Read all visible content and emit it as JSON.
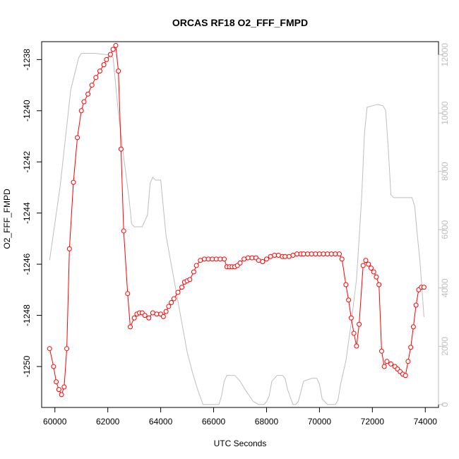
{
  "chart_data": {
    "type": "line",
    "title": "ORCAS RF18 O2_FFF_FMPD",
    "xlabel": "UTC Seconds",
    "ylabel": "O2_FFF_FMPD",
    "xlim": [
      59500,
      74500
    ],
    "ylim": [
      -1251.6,
      -1237.3
    ],
    "y2lim": [
      -100,
      12450
    ],
    "x_ticks": [
      60000,
      62000,
      64000,
      66000,
      68000,
      70000,
      72000,
      74000
    ],
    "y_ticks": [
      -1250,
      -1248,
      -1246,
      -1244,
      -1242,
      -1240,
      -1238
    ],
    "y2_ticks": [
      0,
      2000,
      4000,
      6000,
      8000,
      10000,
      12000
    ],
    "colors": {
      "primary": "#ff0000",
      "secondary": "#bebebe",
      "axis": "#000000"
    },
    "series": [
      {
        "axis": "left",
        "style": "points-lines",
        "x": [
          59800,
          59950,
          60050,
          60150,
          60250,
          60350,
          60450,
          60550,
          60700,
          60850,
          61000,
          61100,
          61250,
          61400,
          61550,
          61700,
          61850,
          61950,
          62100,
          62200,
          62300,
          62400,
          62500,
          62600,
          62750,
          62850,
          63000,
          63100,
          63200,
          63300,
          63400,
          63550,
          63700,
          63850,
          64000,
          64100,
          64200,
          64300,
          64400,
          64500,
          64650,
          64800,
          64900,
          65000,
          65100,
          65250,
          65350,
          65500,
          65650,
          65800,
          65950,
          66100,
          66250,
          66400,
          66500,
          66600,
          66700,
          66800,
          66900,
          67000,
          67150,
          67300,
          67450,
          67600,
          67700,
          67850,
          68000,
          68150,
          68300,
          68450,
          68600,
          68700,
          68850,
          69000,
          69150,
          69300,
          69400,
          69550,
          69700,
          69850,
          70000,
          70150,
          70300,
          70450,
          70600,
          70750,
          70850,
          71000,
          71100,
          71200,
          71300,
          71400,
          71500,
          71650,
          71750,
          71850,
          71950,
          72050,
          72150,
          72250,
          72350,
          72450,
          72550,
          72700,
          72850,
          72950,
          73050,
          73150,
          73250,
          73350,
          73450,
          73550,
          73650,
          73750,
          73850,
          73950
        ],
        "values": [
          -1249.3,
          -1250.0,
          -1250.6,
          -1250.9,
          -1251.1,
          -1250.8,
          -1249.3,
          -1245.4,
          -1242.8,
          -1241.05,
          -1240.0,
          -1239.65,
          -1239.35,
          -1239.0,
          -1238.7,
          -1238.45,
          -1238.2,
          -1238.0,
          -1237.8,
          -1237.6,
          -1237.45,
          -1238.45,
          -1241.5,
          -1244.7,
          -1247.15,
          -1248.45,
          -1248.1,
          -1247.95,
          -1247.9,
          -1247.9,
          -1248.0,
          -1248.1,
          -1247.9,
          -1247.95,
          -1247.95,
          -1248.05,
          -1247.85,
          -1247.65,
          -1247.5,
          -1247.35,
          -1247.1,
          -1246.9,
          -1246.7,
          -1246.65,
          -1246.6,
          -1246.3,
          -1246.05,
          -1245.85,
          -1245.8,
          -1245.8,
          -1245.8,
          -1245.8,
          -1245.8,
          -1245.8,
          -1246.1,
          -1246.1,
          -1246.1,
          -1246.1,
          -1246.05,
          -1245.95,
          -1245.8,
          -1245.75,
          -1245.75,
          -1245.75,
          -1245.85,
          -1245.9,
          -1245.8,
          -1245.7,
          -1245.65,
          -1245.65,
          -1245.7,
          -1245.7,
          -1245.7,
          -1245.65,
          -1245.6,
          -1245.6,
          -1245.6,
          -1245.6,
          -1245.6,
          -1245.6,
          -1245.6,
          -1245.6,
          -1245.6,
          -1245.6,
          -1245.6,
          -1245.6,
          -1245.8,
          -1246.8,
          -1247.4,
          -1248.1,
          -1248.7,
          -1249.2,
          -1248.35,
          -1246.05,
          -1245.85,
          -1246.0,
          -1246.15,
          -1246.3,
          -1246.5,
          -1246.8,
          -1249.4,
          -1250.0,
          -1249.8,
          -1249.9,
          -1250.0,
          -1250.1,
          -1250.2,
          -1250.3,
          -1250.35,
          -1249.8,
          -1249.25,
          -1248.45,
          -1247.6,
          -1247.0,
          -1246.9,
          -1246.9
        ]
      },
      {
        "axis": "right",
        "style": "line",
        "x": [
          59800,
          60200,
          60600,
          60900,
          61000,
          61500,
          62000,
          62200,
          62400,
          62600,
          62800,
          62900,
          63000,
          63100,
          63200,
          63300,
          63500,
          63600,
          63700,
          63800,
          63900,
          64000,
          64200,
          64400,
          64600,
          64800,
          65000,
          65200,
          65400,
          65600,
          65700,
          65800,
          66000,
          66200,
          66300,
          66400,
          66500,
          66800,
          67000,
          67200,
          67500,
          67700,
          67800,
          67900,
          68000,
          68100,
          68200,
          68400,
          68600,
          68700,
          68800,
          69000,
          69100,
          69200,
          69400,
          69700,
          69900,
          70000,
          70100,
          70300,
          70600,
          70700,
          70800,
          71000,
          71200,
          71400,
          71500,
          71600,
          71700,
          71800,
          72000,
          72200,
          72400,
          72500,
          72600,
          72700,
          72800,
          73000,
          73300,
          73500,
          73600,
          73700,
          73800,
          73950
        ],
        "values": [
          4950,
          7500,
          10800,
          11900,
          12050,
          12050,
          12000,
          11900,
          10000,
          8500,
          7100,
          6200,
          6100,
          6100,
          6100,
          6100,
          6500,
          7600,
          7800,
          7700,
          7700,
          7700,
          5800,
          4800,
          3800,
          2800,
          1800,
          1100,
          500,
          0,
          0,
          0,
          0,
          0,
          300,
          800,
          1000,
          1000,
          800,
          500,
          100,
          0,
          0,
          0,
          100,
          300,
          800,
          1000,
          1000,
          900,
          500,
          0,
          0,
          100,
          800,
          900,
          900,
          700,
          200,
          0,
          0,
          150,
          700,
          1500,
          2800,
          4300,
          5700,
          7200,
          9300,
          10200,
          10250,
          10300,
          10250,
          10100,
          8800,
          7200,
          7100,
          7100,
          7100,
          7100,
          6800,
          5800,
          4900,
          3000
        ]
      }
    ]
  }
}
